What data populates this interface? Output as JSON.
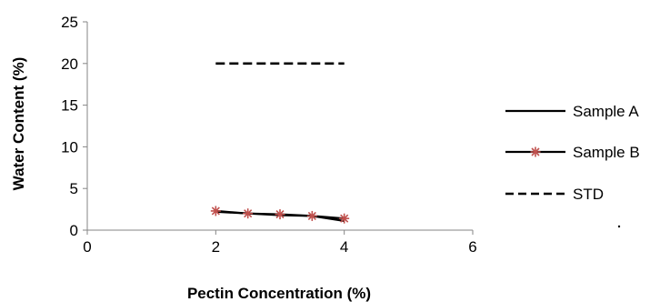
{
  "chart_data": {
    "type": "line",
    "title": "",
    "xlabel": "Pectin Concentration (%)",
    "ylabel": "Water Content (%)",
    "xlim": [
      0,
      6
    ],
    "ylim": [
      0,
      25
    ],
    "x_ticks": [
      0,
      2,
      4,
      6
    ],
    "y_ticks": [
      0,
      5,
      10,
      15,
      20,
      25
    ],
    "grid": false,
    "legend_position": "right",
    "series": [
      {
        "name": "Sample A",
        "style": "solid line",
        "color": "#000000",
        "x": [
          2,
          2.5,
          3,
          3.5,
          4
        ],
        "y": [
          2.2,
          2.0,
          1.8,
          1.7,
          1.1
        ]
      },
      {
        "name": "Sample B",
        "style": "solid line with star markers",
        "color": "#000000",
        "marker_color": "#c0504d",
        "x": [
          2,
          2.5,
          3,
          3.5,
          4
        ],
        "y": [
          2.3,
          2.0,
          1.9,
          1.7,
          1.4
        ]
      },
      {
        "name": "STD",
        "style": "dashed line",
        "color": "#000000",
        "x": [
          2,
          4
        ],
        "y": [
          20,
          20
        ]
      }
    ]
  }
}
